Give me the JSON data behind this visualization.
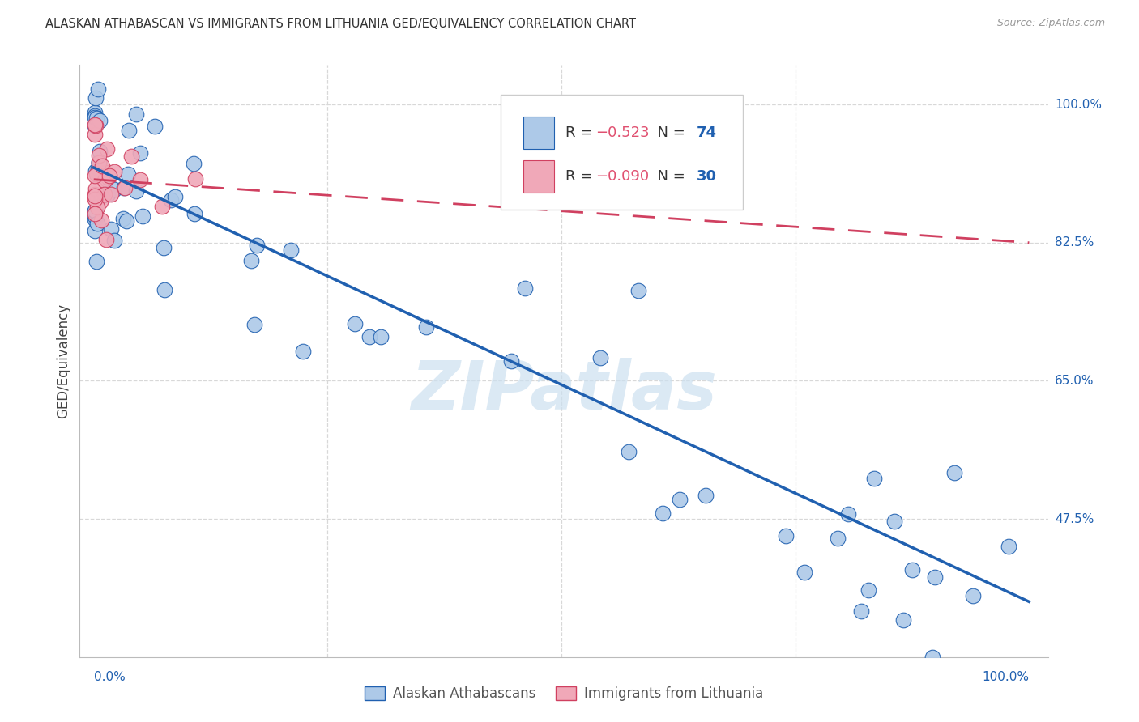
{
  "title": "ALASKAN ATHABASCAN VS IMMIGRANTS FROM LITHUANIA GED/EQUIVALENCY CORRELATION CHART",
  "source": "Source: ZipAtlas.com",
  "ylabel": "GED/Equivalency",
  "legend_blue_r_val": "−0.523",
  "legend_blue_n_val": "74",
  "legend_pink_r_val": "−0.090",
  "legend_pink_n_val": "30",
  "legend_label_blue": "Alaskan Athabascans",
  "legend_label_pink": "Immigrants from Lithuania",
  "blue_face_color": "#adc9e8",
  "blue_edge_color": "#2060b0",
  "pink_face_color": "#f0a8b8",
  "pink_edge_color": "#d04060",
  "watermark_text": "ZIPatlas",
  "watermark_color": "#cce0f0",
  "bg_color": "#ffffff",
  "grid_color": "#d8d8d8",
  "title_color": "#333333",
  "source_color": "#999999",
  "rval_color": "#e05070",
  "nval_color": "#2060b0",
  "xlabel_color": "#2060b0",
  "ytick_color": "#2060b0",
  "ytick_values": [
    1.0,
    0.825,
    0.65,
    0.475
  ],
  "ytick_labels": [
    "100.0%",
    "82.5%",
    "65.0%",
    "47.5%"
  ],
  "xlim": [
    0.0,
    1.0
  ],
  "ylim": [
    0.3,
    1.05
  ],
  "blue_trend_start_y": 0.92,
  "blue_trend_end_y": 0.37,
  "pink_trend_start_y": 0.905,
  "pink_trend_end_y": 0.825,
  "marker_size": 180
}
